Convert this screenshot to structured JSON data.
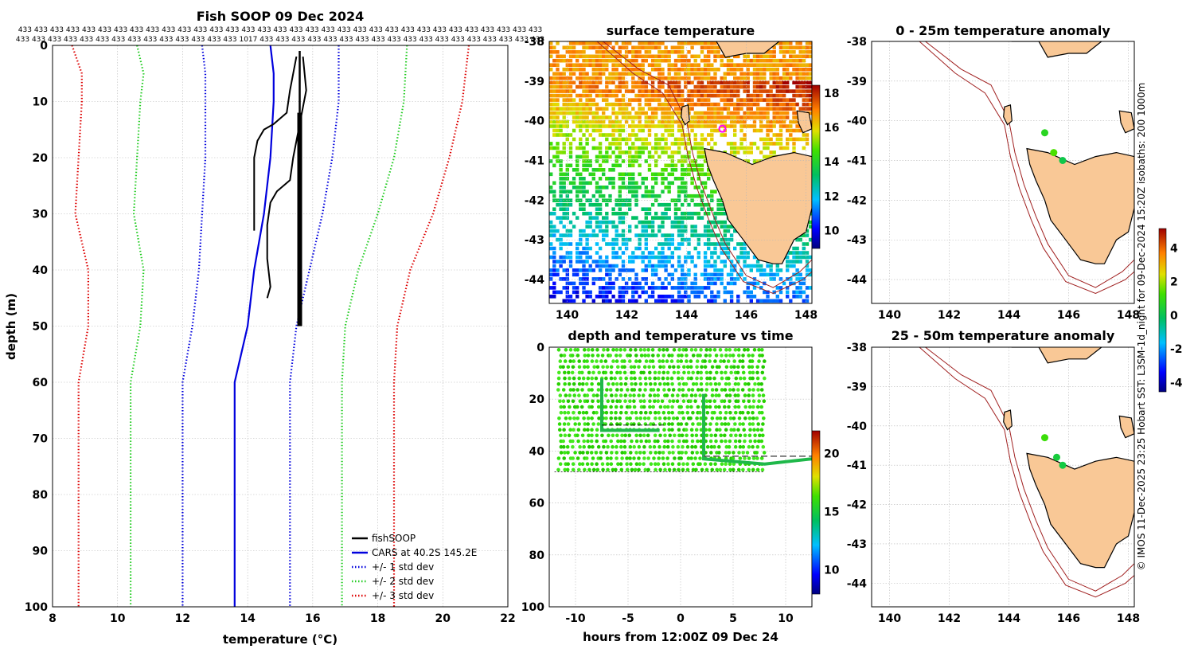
{
  "credit": "© IMOS 11-Dec-2025 23:25 Hobart SST: L3SM-1d_night for 09-Dec-2024 15:20Z isobaths: 200  1000m",
  "chart_data": [
    {
      "id": "profile",
      "type": "line",
      "title": "Fish SOOP 09 Dec 2024",
      "xlabel": "temperature (°C)",
      "ylabel": "depth (m)",
      "xlim": [
        8,
        22
      ],
      "ylim": [
        0,
        100
      ],
      "y_inverted": true,
      "xticks": [
        8,
        10,
        12,
        14,
        16,
        18,
        20,
        22
      ],
      "yticks": [
        0,
        10,
        20,
        30,
        40,
        50,
        60,
        70,
        80,
        90,
        100
      ],
      "top_labels_row1": [
        "433",
        "433",
        "433",
        "433",
        "433",
        "433",
        "433",
        "433",
        "433",
        "433",
        "433",
        "433",
        "433",
        "433",
        "433",
        "433",
        "433",
        "433",
        "433",
        "433",
        "433",
        "433",
        "433",
        "433",
        "433",
        "433",
        "433",
        "433",
        "433",
        "433",
        "433",
        "433",
        "433"
      ],
      "top_labels_row2": [
        "433",
        "433",
        "433",
        "433",
        "433",
        "433",
        "433",
        "433",
        "433",
        "433",
        "433",
        "433",
        "433",
        "433",
        "1017",
        "433",
        "433",
        "433",
        "433",
        "433",
        "433",
        "433",
        "433",
        "433",
        "433",
        "433",
        "433",
        "433",
        "433",
        "433",
        "433",
        "433",
        "433"
      ],
      "legend": [
        "fishSOOP",
        "CARS at 40.2S 145.2E",
        "+/- 1 std dev",
        "+/- 2 std dev",
        "+/- 3 std dev"
      ],
      "series": [
        {
          "name": "CARS at 40.2S 145.2E",
          "color": "#0000dd",
          "style": "solid",
          "points": [
            [
              14.7,
              0
            ],
            [
              14.8,
              5
            ],
            [
              14.8,
              10
            ],
            [
              14.7,
              20
            ],
            [
              14.5,
              30
            ],
            [
              14.2,
              40
            ],
            [
              14.0,
              50
            ],
            [
              13.6,
              60
            ],
            [
              13.6,
              100
            ]
          ]
        },
        {
          "name": "+1 std dev",
          "color": "#0000dd",
          "style": "dotted",
          "points": [
            [
              16.8,
              0
            ],
            [
              16.8,
              10
            ],
            [
              16.6,
              20
            ],
            [
              16.3,
              30
            ],
            [
              15.9,
              40
            ],
            [
              15.5,
              50
            ],
            [
              15.3,
              60
            ],
            [
              15.3,
              100
            ]
          ]
        },
        {
          "name": "-1 std dev",
          "color": "#0000dd",
          "style": "dotted",
          "points": [
            [
              12.6,
              0
            ],
            [
              12.7,
              5
            ],
            [
              12.7,
              10
            ],
            [
              12.7,
              20
            ],
            [
              12.6,
              30
            ],
            [
              12.5,
              40
            ],
            [
              12.3,
              50
            ],
            [
              12.0,
              60
            ],
            [
              12.0,
              100
            ]
          ]
        },
        {
          "name": "+2 std dev",
          "color": "#22cc22",
          "style": "dotted",
          "points": [
            [
              18.9,
              0
            ],
            [
              18.8,
              10
            ],
            [
              18.5,
              20
            ],
            [
              18.0,
              30
            ],
            [
              17.4,
              40
            ],
            [
              17.0,
              50
            ],
            [
              16.9,
              60
            ],
            [
              16.9,
              100
            ]
          ]
        },
        {
          "name": "-2 std dev",
          "color": "#22cc22",
          "style": "dotted",
          "points": [
            [
              10.6,
              0
            ],
            [
              10.8,
              5
            ],
            [
              10.7,
              10
            ],
            [
              10.6,
              20
            ],
            [
              10.5,
              30
            ],
            [
              10.8,
              40
            ],
            [
              10.7,
              50
            ],
            [
              10.4,
              60
            ],
            [
              10.4,
              100
            ]
          ]
        },
        {
          "name": "+3 std dev",
          "color": "#dd0000",
          "style": "dotted",
          "points": [
            [
              20.8,
              0
            ],
            [
              20.6,
              10
            ],
            [
              20.2,
              20
            ],
            [
              19.7,
              30
            ],
            [
              19.0,
              40
            ],
            [
              18.6,
              50
            ],
            [
              18.5,
              60
            ],
            [
              18.5,
              100
            ]
          ]
        },
        {
          "name": "-3 std dev",
          "color": "#dd0000",
          "style": "dotted",
          "points": [
            [
              8.6,
              0
            ],
            [
              8.9,
              5
            ],
            [
              8.9,
              10
            ],
            [
              8.8,
              20
            ],
            [
              8.7,
              30
            ],
            [
              9.1,
              40
            ],
            [
              9.1,
              50
            ],
            [
              8.8,
              60
            ],
            [
              8.8,
              100
            ]
          ]
        },
        {
          "name": "fishSOOP A",
          "color": "#000000",
          "style": "solid",
          "width": 2.5,
          "points": [
            [
              15.6,
              1
            ],
            [
              15.6,
              10
            ],
            [
              15.6,
              20
            ],
            [
              15.6,
              30
            ],
            [
              15.6,
              40
            ],
            [
              15.6,
              50
            ]
          ]
        },
        {
          "name": "fishSOOP B",
          "color": "#000000",
          "style": "solid",
          "width": 2,
          "points": [
            [
              15.5,
              2
            ],
            [
              15.3,
              8
            ],
            [
              15.2,
              12
            ],
            [
              14.8,
              14
            ],
            [
              14.5,
              15
            ],
            [
              14.3,
              17
            ],
            [
              14.2,
              20
            ],
            [
              14.2,
              25
            ],
            [
              14.2,
              30
            ],
            [
              14.2,
              33
            ]
          ]
        },
        {
          "name": "fishSOOP C",
          "color": "#000000",
          "style": "solid",
          "width": 2,
          "points": [
            [
              15.7,
              2
            ],
            [
              15.8,
              8
            ],
            [
              15.6,
              14
            ],
            [
              15.4,
              20
            ],
            [
              15.3,
              24
            ],
            [
              14.9,
              26
            ],
            [
              14.7,
              28
            ],
            [
              14.6,
              32
            ],
            [
              14.6,
              38
            ],
            [
              14.7,
              43
            ],
            [
              14.6,
              45
            ]
          ]
        }
      ]
    },
    {
      "id": "sst",
      "type": "heatmap",
      "title": "surface temperature",
      "xlim": [
        139.4,
        148.2
      ],
      "ylim": [
        -44.6,
        -38
      ],
      "xticks": [
        140,
        142,
        144,
        146,
        148
      ],
      "yticks": [
        -38,
        -39,
        -40,
        -41,
        -42,
        -43,
        -44
      ],
      "colorbar_ticks": [
        10,
        12,
        14,
        16,
        18
      ],
      "colorbar_range": [
        9,
        18.5
      ],
      "marker": {
        "lon": 145.2,
        "lat": -40.2
      }
    },
    {
      "id": "depthtime",
      "type": "scatter",
      "title": "depth and temperature vs time",
      "xlabel": "hours from 12:00Z 09 Dec 24",
      "xlim": [
        -12.5,
        12.5
      ],
      "ylim": [
        0,
        100
      ],
      "y_inverted": true,
      "xticks": [
        -10,
        -5,
        0,
        5,
        10
      ],
      "yticks": [
        0,
        20,
        40,
        60,
        80,
        100
      ],
      "colorbar_ticks": [
        10,
        15,
        20
      ],
      "colorbar_range": [
        8,
        22
      ]
    },
    {
      "id": "anom1",
      "type": "map",
      "title": "0 - 25m temperature anomaly",
      "xlim": [
        139.4,
        148.2
      ],
      "ylim": [
        -44.6,
        -38
      ],
      "xticks": [
        140,
        142,
        144,
        146,
        148
      ],
      "yticks": [
        -38,
        -39,
        -40,
        -41,
        -42,
        -43,
        -44
      ],
      "points": [
        {
          "lon": 145.2,
          "lat": -40.3,
          "anom": 0.8
        },
        {
          "lon": 145.5,
          "lat": -40.8,
          "anom": 1.4
        },
        {
          "lon": 145.8,
          "lat": -41.0,
          "anom": 0.2
        }
      ]
    },
    {
      "id": "anom2",
      "type": "map",
      "title": "25 - 50m temperature anomaly",
      "xlim": [
        139.4,
        148.2
      ],
      "ylim": [
        -44.6,
        -38
      ],
      "xticks": [
        140,
        142,
        144,
        146,
        148
      ],
      "yticks": [
        -38,
        -39,
        -40,
        -41,
        -42,
        -43,
        -44
      ],
      "colorbar_ticks": [
        -4,
        -2,
        0,
        2,
        4
      ],
      "colorbar_range": [
        -4.5,
        5.2
      ],
      "points": [
        {
          "lon": 145.2,
          "lat": -40.3,
          "anom": 1.2
        },
        {
          "lon": 145.6,
          "lat": -40.8,
          "anom": 0.4
        },
        {
          "lon": 145.8,
          "lat": -41.0,
          "anom": 0.3
        }
      ]
    }
  ]
}
